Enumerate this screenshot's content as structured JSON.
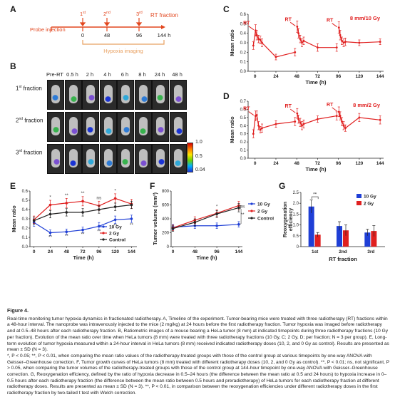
{
  "panels": {
    "A": {
      "label": "A",
      "event_1st": "1",
      "event_1st_sup": "st",
      "event_2nd": "2",
      "event_2nd_sup": "nd",
      "event_3rd": "3",
      "event_3rd_sup": "rd",
      "rt_fraction": "RT fraction",
      "probe_injection": "Probe injection",
      "hypoxia_imaging": "Hypoxia imaging",
      "ticks": [
        "0",
        "48",
        "96",
        "144 h"
      ]
    },
    "B": {
      "label": "B",
      "columns": [
        "Pre-RT",
        "0.5 h",
        "2 h",
        "4 h",
        "6 h",
        "8 h",
        "24 h",
        "48 h"
      ],
      "rows": [
        {
          "num": "1",
          "sup": "st",
          "text": " fraction"
        },
        {
          "num": "2",
          "sup": "nd",
          "text": " fraction"
        },
        {
          "num": "3",
          "sup": "rd",
          "text": " fraction"
        }
      ],
      "colorbar_ticks": [
        "1.0",
        "0.5",
        "0.04"
      ]
    },
    "C": {
      "label": "C"
    },
    "D": {
      "label": "D"
    },
    "E": {
      "label": "E"
    },
    "F": {
      "label": "F"
    },
    "G": {
      "label": "G"
    }
  },
  "chart_data": [
    {
      "panel": "C",
      "type": "line",
      "annotation": "8 mm/10 Gy",
      "rt_markers": [
        "RT",
        "RT",
        "RT"
      ],
      "xlabel": "Time (h)",
      "ylabel": "Mean ratio",
      "xlim": [
        -8,
        148
      ],
      "ylim": [
        0.0,
        0.6
      ],
      "xticks": [
        0,
        24,
        48,
        72,
        96,
        120,
        144
      ],
      "yticks": [
        0.0,
        0.1,
        0.2,
        0.3,
        0.4,
        0.5,
        0.6
      ],
      "rt_times": [
        0,
        48,
        96
      ],
      "series": [
        {
          "color": "#e02020",
          "x": [
            -2,
            0.5,
            2,
            4,
            6,
            8,
            24,
            46,
            48.5,
            50,
            52,
            54,
            56,
            72,
            94,
            96.5,
            98,
            100,
            102,
            104,
            120,
            144
          ],
          "y": [
            0.27,
            0.43,
            0.38,
            0.34,
            0.33,
            0.3,
            0.15,
            0.2,
            0.47,
            0.4,
            0.34,
            0.3,
            0.32,
            0.25,
            0.25,
            0.46,
            0.38,
            0.32,
            0.3,
            0.31,
            0.3,
            0.31
          ],
          "err": [
            0.04,
            0.06,
            0.05,
            0.04,
            0.04,
            0.04,
            0.03,
            0.04,
            0.06,
            0.05,
            0.04,
            0.04,
            0.04,
            0.04,
            0.04,
            0.06,
            0.05,
            0.04,
            0.04,
            0.04,
            0.03,
            0.03
          ]
        }
      ]
    },
    {
      "panel": "D",
      "type": "line",
      "annotation": "8 mm/2 Gy",
      "rt_markers": [
        "RT",
        "RT",
        "RT"
      ],
      "xlabel": "Time (h)",
      "ylabel": "Mean ratio",
      "xlim": [
        -8,
        148
      ],
      "ylim": [
        0.0,
        0.7
      ],
      "xticks": [
        0,
        24,
        48,
        72,
        96,
        120,
        144
      ],
      "yticks": [
        0.0,
        0.1,
        0.2,
        0.3,
        0.4,
        0.5,
        0.6,
        0.7
      ],
      "rt_times": [
        0,
        48,
        96
      ],
      "series": [
        {
          "color": "#e02020",
          "x": [
            -2,
            0.5,
            2,
            4,
            6,
            8,
            24,
            46,
            48.5,
            50,
            52,
            54,
            56,
            72,
            94,
            96.5,
            98,
            100,
            102,
            104,
            120,
            144
          ],
          "y": [
            0.3,
            0.52,
            0.53,
            0.4,
            0.35,
            0.37,
            0.42,
            0.45,
            0.55,
            0.48,
            0.44,
            0.4,
            0.42,
            0.48,
            0.52,
            0.57,
            0.52,
            0.45,
            0.4,
            0.37,
            0.5,
            0.47
          ],
          "err": [
            0.05,
            0.06,
            0.05,
            0.05,
            0.04,
            0.05,
            0.04,
            0.05,
            0.06,
            0.05,
            0.05,
            0.05,
            0.05,
            0.04,
            0.05,
            0.06,
            0.05,
            0.05,
            0.05,
            0.04,
            0.05,
            0.05
          ]
        }
      ]
    },
    {
      "panel": "E",
      "type": "line",
      "xlabel": "Time (h)",
      "ylabel": "Mean ratio",
      "xlim": [
        -6,
        152
      ],
      "ylim": [
        0.0,
        0.6
      ],
      "xticks": [
        0,
        24,
        48,
        72,
        96,
        120,
        144
      ],
      "yticks": [
        0.0,
        0.1,
        0.2,
        0.3,
        0.4,
        0.5,
        0.6
      ],
      "legend_position": "bottom-right",
      "series": [
        {
          "name": "10 Gy",
          "color": "#1f3fd6",
          "x": [
            0,
            24,
            48,
            72,
            96,
            120,
            144
          ],
          "y": [
            0.26,
            0.15,
            0.16,
            0.18,
            0.22,
            0.29,
            0.3
          ],
          "err": [
            0.04,
            0.03,
            0.03,
            0.03,
            0.04,
            0.04,
            0.04
          ]
        },
        {
          "name": "2 Gy",
          "color": "#e02020",
          "x": [
            0,
            24,
            48,
            72,
            96,
            120,
            144
          ],
          "y": [
            0.29,
            0.45,
            0.47,
            0.49,
            0.44,
            0.52,
            0.46
          ],
          "err": [
            0.04,
            0.05,
            0.05,
            0.05,
            0.05,
            0.05,
            0.05
          ]
        },
        {
          "name": "Control",
          "color": "#222222",
          "x": [
            0,
            24,
            48,
            72,
            96,
            120,
            144
          ],
          "y": [
            0.28,
            0.35,
            0.37,
            0.37,
            0.4,
            0.43,
            0.45
          ],
          "err": [
            0.04,
            0.04,
            0.04,
            0.04,
            0.04,
            0.04,
            0.04
          ]
        }
      ],
      "annotations": [
        {
          "text": "*",
          "x": 24,
          "y": 0.52
        },
        {
          "text": "**",
          "x": 48,
          "y": 0.54
        },
        {
          "text": "**",
          "x": 72,
          "y": 0.56
        },
        {
          "text": "ns",
          "x": 96,
          "y": 0.51
        },
        {
          "text": "*",
          "x": 120,
          "y": 0.59
        },
        {
          "text": "**",
          "x": 24,
          "y": 0.09
        },
        {
          "text": "**",
          "x": 48,
          "y": 0.1
        },
        {
          "text": "**",
          "x": 72,
          "y": 0.12
        },
        {
          "text": "**",
          "x": 96,
          "y": 0.15
        },
        {
          "text": "**",
          "x": 120,
          "y": 0.21
        },
        {
          "text": "**",
          "x": 144,
          "y": 0.22
        }
      ]
    },
    {
      "panel": "F",
      "type": "line",
      "xlabel": "Time (h)",
      "ylabel": "Tumor volume (mm³)",
      "xlim": [
        -4,
        152
      ],
      "ylim": [
        0,
        800
      ],
      "xticks": [
        0,
        48,
        96,
        144
      ],
      "yticks": [
        0,
        200,
        400,
        600,
        800
      ],
      "legend_position": "right",
      "series": [
        {
          "name": "10 Gy",
          "color": "#1f3fd6",
          "x": [
            0,
            48,
            96,
            144
          ],
          "y": [
            280,
            300,
            300,
            320
          ],
          "err": [
            40,
            40,
            40,
            40
          ]
        },
        {
          "name": "2 Gy",
          "color": "#e02020",
          "x": [
            0,
            48,
            96,
            144
          ],
          "y": [
            270,
            380,
            480,
            590
          ],
          "err": [
            40,
            50,
            50,
            60
          ]
        },
        {
          "name": "Control",
          "color": "#222222",
          "x": [
            0,
            48,
            96,
            144
          ],
          "y": [
            260,
            350,
            470,
            560
          ],
          "err": [
            40,
            50,
            50,
            60
          ]
        }
      ],
      "annotations": [
        {
          "text": "*",
          "x": 96,
          "y": 560
        },
        {
          "text": "ns",
          "x": 152,
          "y": 560
        },
        {
          "text": "**",
          "x": 152,
          "y": 440
        }
      ]
    },
    {
      "panel": "G",
      "type": "bar",
      "xlabel": "RT fraction",
      "ylabel": "Reoxygenation efficiency",
      "categories": [
        "1st",
        "2nd",
        "3rd"
      ],
      "ylim": [
        0,
        2.5
      ],
      "yticks": [
        0,
        0.5,
        1.0,
        1.5,
        2.0,
        2.5
      ],
      "legend_position": "top-right",
      "series": [
        {
          "name": "10 Gy",
          "color": "#1f3fd6",
          "values": [
            1.85,
            0.95,
            0.65
          ],
          "err": [
            0.3,
            0.2,
            0.15
          ]
        },
        {
          "name": "2 Gy",
          "color": "#e02020",
          "values": [
            0.55,
            0.75,
            0.72
          ],
          "err": [
            0.1,
            0.25,
            0.25
          ]
        }
      ],
      "annotations": [
        {
          "text": "**",
          "category": "1st",
          "y": 2.3
        }
      ]
    }
  ],
  "caption": {
    "title": "Figure 4.",
    "paragraphs": [
      "Real-time monitoring tumor hypoxia dynamics in fractionated radiotherapy. A, Timeline of the experiment. Tumor-bearing mice were treated with three radiotherapy (RT) fractions within a 48-hour interval. The nanoprobe was intravenously injected to the mice (2 mg/kg) at 24 hours before the first radiotherapy fraction. Tumor hypoxia was imaged before radiotherapy and at 0.5–48 hours after each radiotherapy fraction. B, Ratiometric images of a mouse bearing a HeLa tumor (8 mm) at indicated timepoints during three radiotherapy fractions (10 Gy per fraction). Evolution of the mean ratio over time when HeLa tumors (8 mm) were treated with three radiotherapy fractions (10 Gy, C; 2 Gy, D; per fraction; N = 3 per group). E, Long-term evolution of tumor hypoxia measured within a 24-hour interval in HeLa tumors (8 mm) received indicated radiotherapy doses (10, 2, and 0 Gy as control). Results are presented as mean ± SD (N = 3).",
      "*, P < 0.05; **, P < 0.01, when comparing the mean ratio values of the radiotherapy-treated groups with those of the control group at various timepoints by one-way ANOVA with Geisser–Greenhouse correction. F, Tumor growth curves of HeLa tumors (8 mm) treated with different radiotherapy doses (10, 2, and 0 Gy as control). **, P < 0.01; ns, not significant, P > 0.05, when comparing the tumor volumes of the radiotherapy-treated groups with those of the control group at 144-hour timepoint by one-way ANOVA with Geisser–Greenhouse correction. G, Reoxygenation efficiency, defined by the ratio of hypoxia decrease in 0.5–24 hours (the difference between the mean ratio at 0.5 and 24 hours) to hypoxia increase in 0–0.5 hours after each radiotherapy fraction (the difference between the mean ratio between 0.5 hours and preradiotherapy) of HeLa tumors for each radiotherapy fraction at different radiotherapy doses. Results are presented as mean ± SD (N = 3). **, P < 0.01, in comparison between the reoxygenation efficiencies under different radiotherapy doses in the first radiotherapy fraction by two-tailed t test with Welch correction."
    ]
  }
}
